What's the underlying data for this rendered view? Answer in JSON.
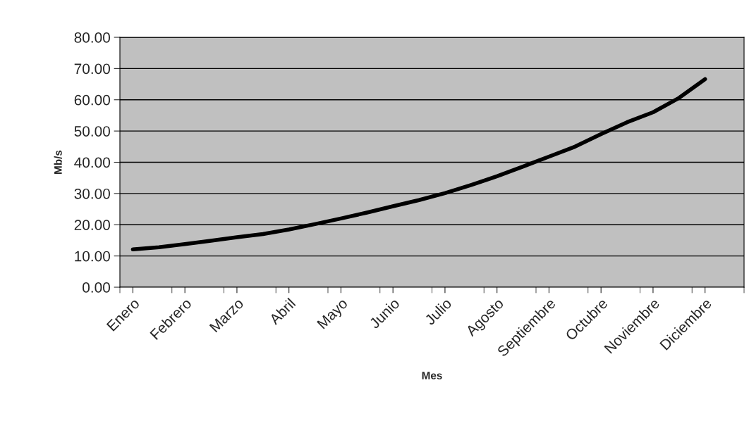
{
  "chart_data": {
    "type": "line",
    "xlabel": "Mes",
    "ylabel": "Mb/s",
    "categories": [
      "Enero",
      null,
      "Febrero",
      null,
      "Marzo",
      null,
      "Abril",
      null,
      "Mayo",
      null,
      "Junio",
      null,
      "Julio",
      null,
      "Agosto",
      null,
      "Septiembre",
      null,
      "Octubre",
      null,
      "Noviembre",
      null,
      "Diciembre",
      null
    ],
    "series": [
      {
        "color": "#000000",
        "values": [
          12.1,
          12.8,
          13.8,
          14.9,
          16.0,
          17.0,
          18.5,
          20.2,
          22.0,
          23.9,
          25.9,
          27.9,
          30.1,
          32.7,
          35.5,
          38.6,
          41.8,
          45.0,
          49.0,
          52.8,
          56.0,
          60.6,
          66.6,
          null
        ]
      }
    ],
    "ylim": [
      0,
      80
    ],
    "yticks": [
      {
        "value": 0,
        "label": "0.00"
      },
      {
        "value": 10,
        "label": "10.00"
      },
      {
        "value": 20,
        "label": "20.00"
      },
      {
        "value": 30,
        "label": "30.00"
      },
      {
        "value": 40,
        "label": "40.00"
      },
      {
        "value": 50,
        "label": "50.00"
      },
      {
        "value": 60,
        "label": "60.00"
      },
      {
        "value": 70,
        "label": "70.00"
      },
      {
        "value": 80,
        "label": "80.00"
      }
    ],
    "grid": "y",
    "legend": false,
    "marker": "none",
    "line_style": "solid"
  }
}
